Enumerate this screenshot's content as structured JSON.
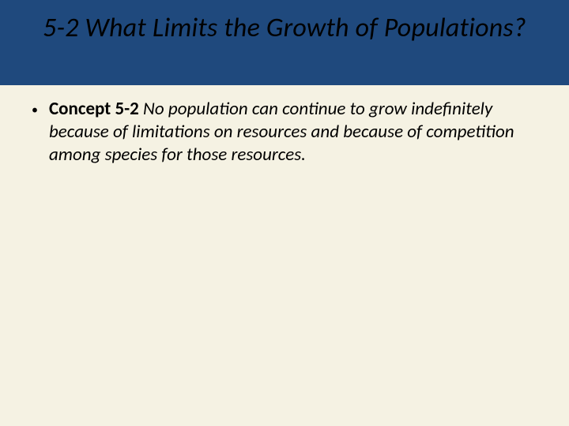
{
  "slide": {
    "background_color": "#f5f2e3",
    "band_color": "#1f497d",
    "title": "5-2 What Limits the Growth of Populations?",
    "title_fontsize": 34,
    "title_color": "#000000",
    "bullet": {
      "marker": "•",
      "concept_label": "Concept 5-2",
      "body_text": "  No population can continue to grow indefinitely because of limitations on resources and because of competition among species for those resources.",
      "fontsize": 23,
      "text_color": "#000000"
    }
  }
}
